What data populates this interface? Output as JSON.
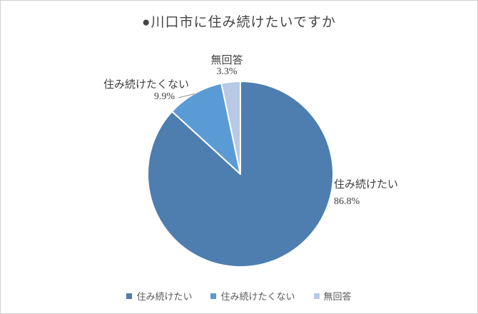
{
  "title": "●川口市に住み続けたいですか",
  "chart_data": {
    "type": "pie",
    "title": "●川口市に住み続けたいですか",
    "categories": [
      "住み続けたい",
      "住み続けたくない",
      "無回答"
    ],
    "values": [
      86.8,
      9.9,
      3.3
    ],
    "unit": "%",
    "colors": [
      "#4D7EAF",
      "#5B9BD5",
      "#B7C9E4"
    ],
    "slice_border_color": "#ffffff",
    "leader_line_color": "#8e8e8e",
    "start_angle_deg": 0,
    "direction": "clockwise",
    "legend_position": "bottom",
    "data_labels": "outside, category name + percentage"
  },
  "labels": {
    "stay": {
      "name": "住み続けたい",
      "pct": "86.8%"
    },
    "not_stay": {
      "name": "住み続けたくない",
      "pct": "9.9%"
    },
    "no_answer": {
      "name": "無回答",
      "pct": "3.3%"
    }
  },
  "legend": {
    "items": [
      {
        "label": "住み続けたい",
        "color": "#4D7EAF"
      },
      {
        "label": "住み続けたくない",
        "color": "#5B9BD5"
      },
      {
        "label": "無回答",
        "color": "#B7C9E4"
      }
    ]
  }
}
